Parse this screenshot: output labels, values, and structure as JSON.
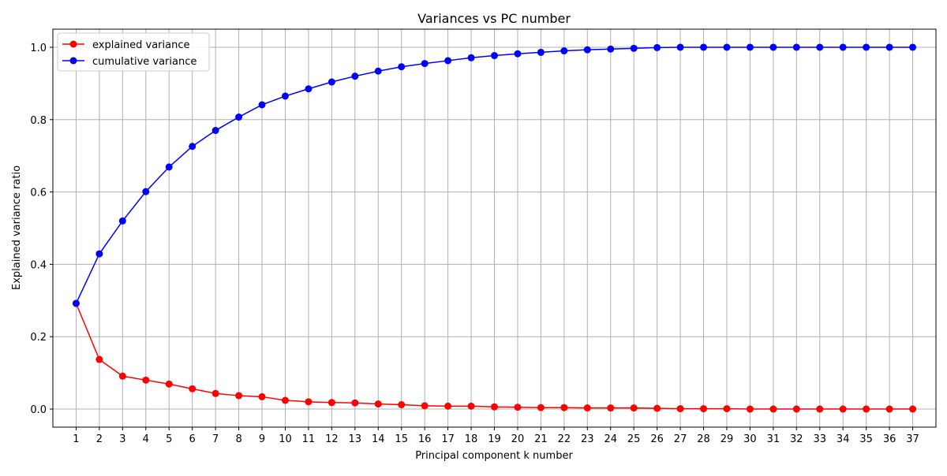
{
  "chart_data": {
    "type": "line",
    "title": "Variances vs PC number",
    "xlabel": "Principal component k number",
    "ylabel": "Explained variance ratio",
    "x": [
      1,
      2,
      3,
      4,
      5,
      6,
      7,
      8,
      9,
      10,
      11,
      12,
      13,
      14,
      15,
      16,
      17,
      18,
      19,
      20,
      21,
      22,
      23,
      24,
      25,
      26,
      27,
      28,
      29,
      30,
      31,
      32,
      33,
      34,
      35,
      36,
      37
    ],
    "xticks": [
      "1",
      "2",
      "3",
      "4",
      "5",
      "6",
      "7",
      "8",
      "9",
      "10",
      "11",
      "12",
      "13",
      "14",
      "15",
      "16",
      "17",
      "18",
      "19",
      "20",
      "21",
      "22",
      "23",
      "24",
      "25",
      "26",
      "27",
      "28",
      "29",
      "30",
      "31",
      "32",
      "33",
      "34",
      "35",
      "36",
      "37"
    ],
    "yticks": [
      "0.0",
      "0.2",
      "0.4",
      "0.6",
      "0.8",
      "1.0"
    ],
    "ylim": [
      -0.05,
      1.05
    ],
    "xlim": [
      0,
      38
    ],
    "grid": true,
    "legend_position": "upper-left",
    "series": [
      {
        "name": "explained variance",
        "color": "#ff0000",
        "values": [
          0.292,
          0.137,
          0.091,
          0.08,
          0.069,
          0.056,
          0.043,
          0.037,
          0.034,
          0.024,
          0.02,
          0.018,
          0.017,
          0.014,
          0.012,
          0.009,
          0.008,
          0.008,
          0.006,
          0.005,
          0.004,
          0.004,
          0.003,
          0.003,
          0.003,
          0.002,
          0.001,
          0.001,
          0.001,
          0.0,
          0.0,
          0.0,
          0.0,
          0.0,
          0.0,
          0.0,
          0.0
        ]
      },
      {
        "name": "cumulative variance",
        "color": "#0000ff",
        "values": [
          0.292,
          0.429,
          0.52,
          0.601,
          0.669,
          0.726,
          0.77,
          0.807,
          0.841,
          0.865,
          0.885,
          0.904,
          0.92,
          0.934,
          0.946,
          0.955,
          0.963,
          0.971,
          0.977,
          0.982,
          0.986,
          0.99,
          0.993,
          0.995,
          0.997,
          0.999,
          1.0,
          1.0,
          1.0,
          1.0,
          1.0,
          1.0,
          1.0,
          1.0,
          1.0,
          1.0,
          1.0
        ]
      }
    ]
  }
}
